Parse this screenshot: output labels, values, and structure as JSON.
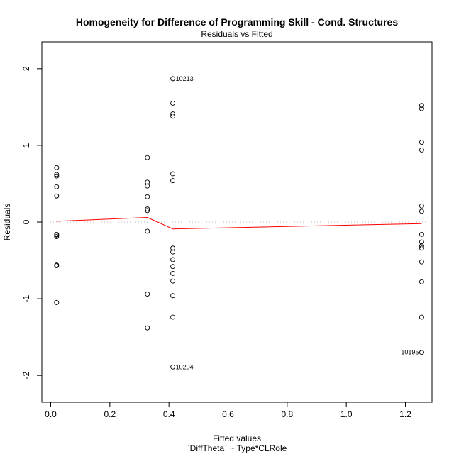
{
  "chart_data": {
    "type": "scatter",
    "title": "Homogeneity for Difference of Programming Skill - Cond. Structures",
    "subtitle": "Residuals vs Fitted",
    "xlabel": "Fitted values",
    "xsublabel": "`DiffTheta` ~ Type*CLRole",
    "ylabel": "Residuals",
    "xlim": [
      -0.03,
      1.29
    ],
    "ylim": [
      -2.35,
      2.35
    ],
    "xticks": [
      0.0,
      0.2,
      0.4,
      0.6,
      0.8,
      1.0,
      1.2
    ],
    "xtick_labels": [
      "0.0",
      "0.2",
      "0.4",
      "0.6",
      "0.8",
      "1.0",
      "1.2"
    ],
    "yticks": [
      -2,
      -1,
      0,
      1,
      2
    ],
    "ytick_labels": [
      "-2",
      "-1",
      "0",
      "1",
      "2"
    ],
    "grid": false,
    "reference_line": {
      "y": 0,
      "style": "dotted",
      "color": "#bbbbbb"
    },
    "points": [
      {
        "x": 0.02,
        "y": 0.71
      },
      {
        "x": 0.02,
        "y": 0.62
      },
      {
        "x": 0.02,
        "y": 0.6
      },
      {
        "x": 0.02,
        "y": 0.46
      },
      {
        "x": 0.02,
        "y": 0.34
      },
      {
        "x": 0.02,
        "y": -0.16
      },
      {
        "x": 0.02,
        "y": -0.17
      },
      {
        "x": 0.02,
        "y": -0.19
      },
      {
        "x": 0.02,
        "y": -0.56
      },
      {
        "x": 0.02,
        "y": -0.57
      },
      {
        "x": 0.02,
        "y": -1.05
      },
      {
        "x": 0.327,
        "y": 0.84
      },
      {
        "x": 0.327,
        "y": 0.52
      },
      {
        "x": 0.327,
        "y": 0.47
      },
      {
        "x": 0.327,
        "y": 0.33
      },
      {
        "x": 0.327,
        "y": 0.17
      },
      {
        "x": 0.327,
        "y": 0.15
      },
      {
        "x": 0.327,
        "y": -0.12
      },
      {
        "x": 0.327,
        "y": -0.94
      },
      {
        "x": 0.327,
        "y": -1.38
      },
      {
        "x": 0.413,
        "y": 1.87
      },
      {
        "x": 0.413,
        "y": 1.55
      },
      {
        "x": 0.413,
        "y": 1.41
      },
      {
        "x": 0.413,
        "y": 1.38
      },
      {
        "x": 0.413,
        "y": 0.63
      },
      {
        "x": 0.413,
        "y": 0.54
      },
      {
        "x": 0.413,
        "y": -0.34
      },
      {
        "x": 0.413,
        "y": -0.39
      },
      {
        "x": 0.413,
        "y": -0.49
      },
      {
        "x": 0.413,
        "y": -0.58
      },
      {
        "x": 0.413,
        "y": -0.67
      },
      {
        "x": 0.413,
        "y": -0.77
      },
      {
        "x": 0.413,
        "y": -0.96
      },
      {
        "x": 0.413,
        "y": -1.24
      },
      {
        "x": 0.413,
        "y": -1.89
      },
      {
        "x": 1.255,
        "y": 1.52
      },
      {
        "x": 1.255,
        "y": 1.48
      },
      {
        "x": 1.255,
        "y": 1.04
      },
      {
        "x": 1.255,
        "y": 0.94
      },
      {
        "x": 1.255,
        "y": 0.21
      },
      {
        "x": 1.255,
        "y": 0.14
      },
      {
        "x": 1.255,
        "y": -0.16
      },
      {
        "x": 1.255,
        "y": -0.26
      },
      {
        "x": 1.255,
        "y": -0.31
      },
      {
        "x": 1.255,
        "y": -0.34
      },
      {
        "x": 1.255,
        "y": -0.52
      },
      {
        "x": 1.255,
        "y": -0.78
      },
      {
        "x": 1.255,
        "y": -1.24
      },
      {
        "x": 1.255,
        "y": -1.7
      }
    ],
    "labeled_points": [
      {
        "label": "10213",
        "x": 0.413,
        "y": 1.87,
        "side": "right"
      },
      {
        "label": "10204",
        "x": 0.413,
        "y": -1.89,
        "side": "right"
      },
      {
        "label": "10195",
        "x": 1.255,
        "y": -1.7,
        "side": "left"
      }
    ],
    "smooth_line": {
      "color": "#ff0000",
      "points": [
        {
          "x": 0.02,
          "y": 0.01
        },
        {
          "x": 0.327,
          "y": 0.06
        },
        {
          "x": 0.413,
          "y": -0.09
        },
        {
          "x": 1.255,
          "y": -0.02
        }
      ]
    },
    "colors": {
      "points": "#000000",
      "smooth": "#ff0000",
      "reference": "#bbbbbb"
    }
  }
}
